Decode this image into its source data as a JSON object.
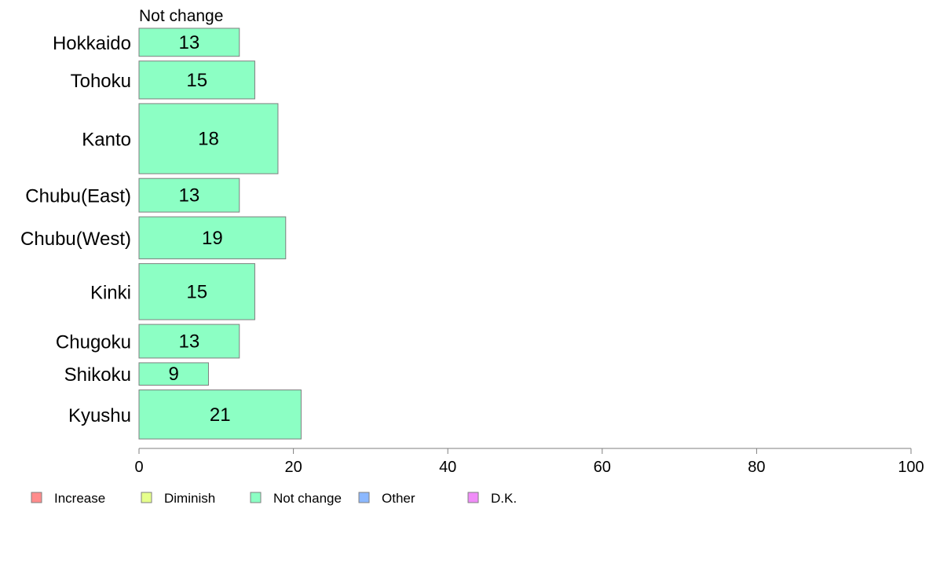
{
  "chart_data": {
    "type": "bar",
    "orientation": "horizontal",
    "stacked": true,
    "column_title": "Not change",
    "categories": [
      "Hokkaido",
      "Tohoku",
      "Kanto",
      "Chubu(East)",
      "Chubu(West)",
      "Kinki",
      "Chugoku",
      "Shikoku",
      "Kyushu"
    ],
    "series": [
      {
        "name": "Not change",
        "color": "#8cffc4",
        "values": [
          13,
          15,
          18,
          13,
          19,
          15,
          13,
          9,
          21
        ]
      }
    ],
    "value_labels": [
      "13",
      "15",
      "18",
      "13",
      "19",
      "15",
      "13",
      "9",
      "21"
    ],
    "bar_weights": [
      2.0,
      2.7,
      5.0,
      2.4,
      3.0,
      4.0,
      2.4,
      1.6,
      3.5
    ],
    "xlim": [
      0,
      100
    ],
    "xticks": [
      0,
      20,
      40,
      60,
      80,
      100
    ],
    "xtick_labels": [
      "0",
      "20",
      "40",
      "60",
      "80",
      "100"
    ],
    "grid": false,
    "legend": {
      "placement": "bottom-left",
      "items": [
        {
          "label": "Increase",
          "color": "#ff8c8c"
        },
        {
          "label": "Diminish",
          "color": "#e6ff8c"
        },
        {
          "label": "Not change",
          "color": "#8cffc4"
        },
        {
          "label": "Other",
          "color": "#8cb8ff"
        },
        {
          "label": "D.K.",
          "color": "#f08cf8"
        }
      ]
    }
  }
}
